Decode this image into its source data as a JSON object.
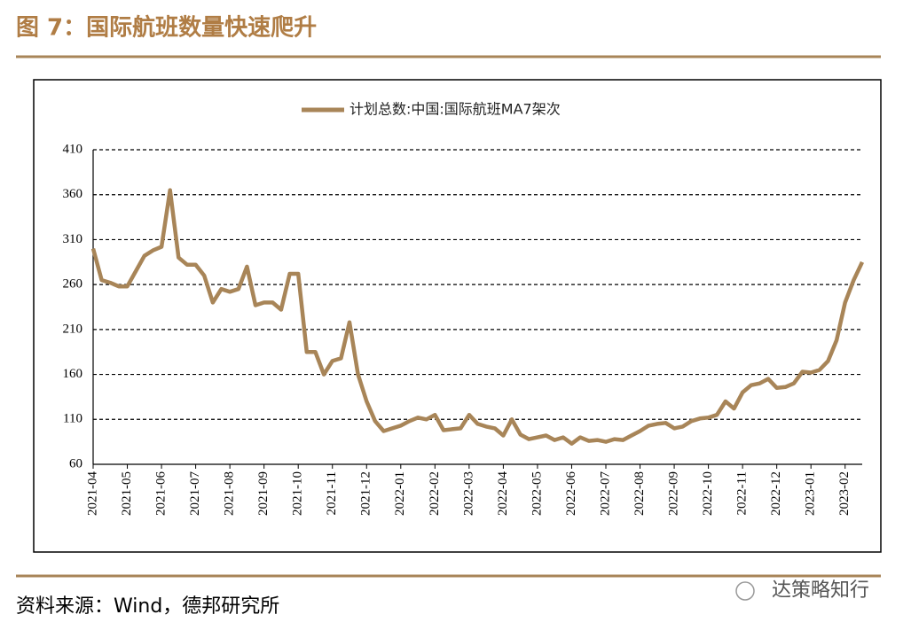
{
  "header": {
    "title": "图 7：国际航班数量快速爬升"
  },
  "chart_data": {
    "type": "line",
    "categories": [
      "2021-04",
      null,
      null,
      null,
      "2021-05",
      null,
      null,
      null,
      "2021-06",
      null,
      null,
      null,
      "2021-07",
      null,
      null,
      null,
      "2021-08",
      null,
      null,
      null,
      "2021-09",
      null,
      null,
      null,
      "2021-10",
      null,
      null,
      null,
      "2021-11",
      null,
      null,
      null,
      "2021-12",
      null,
      null,
      null,
      "2022-01",
      null,
      null,
      null,
      "2022-02",
      null,
      null,
      null,
      "2022-03",
      null,
      null,
      null,
      "2022-04",
      null,
      null,
      null,
      "2022-05",
      null,
      null,
      null,
      "2022-06",
      null,
      null,
      null,
      "2022-07",
      null,
      null,
      null,
      "2022-08",
      null,
      null,
      null,
      "2022-09",
      null,
      null,
      null,
      "2022-10",
      null,
      null,
      null,
      "2022-11",
      null,
      null,
      null,
      "2022-12",
      null,
      null,
      null,
      "2023-01",
      null,
      null,
      null,
      "2023-02",
      null,
      null
    ],
    "series": [
      {
        "name": "计划总数:中国:国际航班MA7架次",
        "color": "#a88558",
        "values": [
          300,
          265,
          262,
          258,
          258,
          275,
          292,
          298,
          302,
          365,
          290,
          282,
          282,
          270,
          240,
          255,
          252,
          255,
          280,
          237,
          240,
          240,
          232,
          272,
          272,
          185,
          185,
          160,
          175,
          178,
          218,
          160,
          130,
          108,
          97,
          100,
          103,
          108,
          112,
          110,
          115,
          98,
          99,
          100,
          115,
          105,
          102,
          100,
          92,
          110,
          93,
          88,
          90,
          92,
          87,
          90,
          83,
          90,
          86,
          87,
          85,
          88,
          87,
          92,
          97,
          103,
          105,
          106,
          100,
          102,
          108,
          111,
          112,
          115,
          130,
          122,
          140,
          148,
          150,
          155,
          145,
          146,
          150,
          163,
          162,
          165,
          175,
          198,
          240,
          265,
          285
        ]
      }
    ],
    "ylim": [
      60,
      410
    ],
    "yticks": [
      60,
      110,
      160,
      210,
      260,
      310,
      360,
      410
    ],
    "grid": true
  },
  "footer": {
    "source": "资料来源：Wind，德邦研究所",
    "watermark": "达策略知行"
  }
}
